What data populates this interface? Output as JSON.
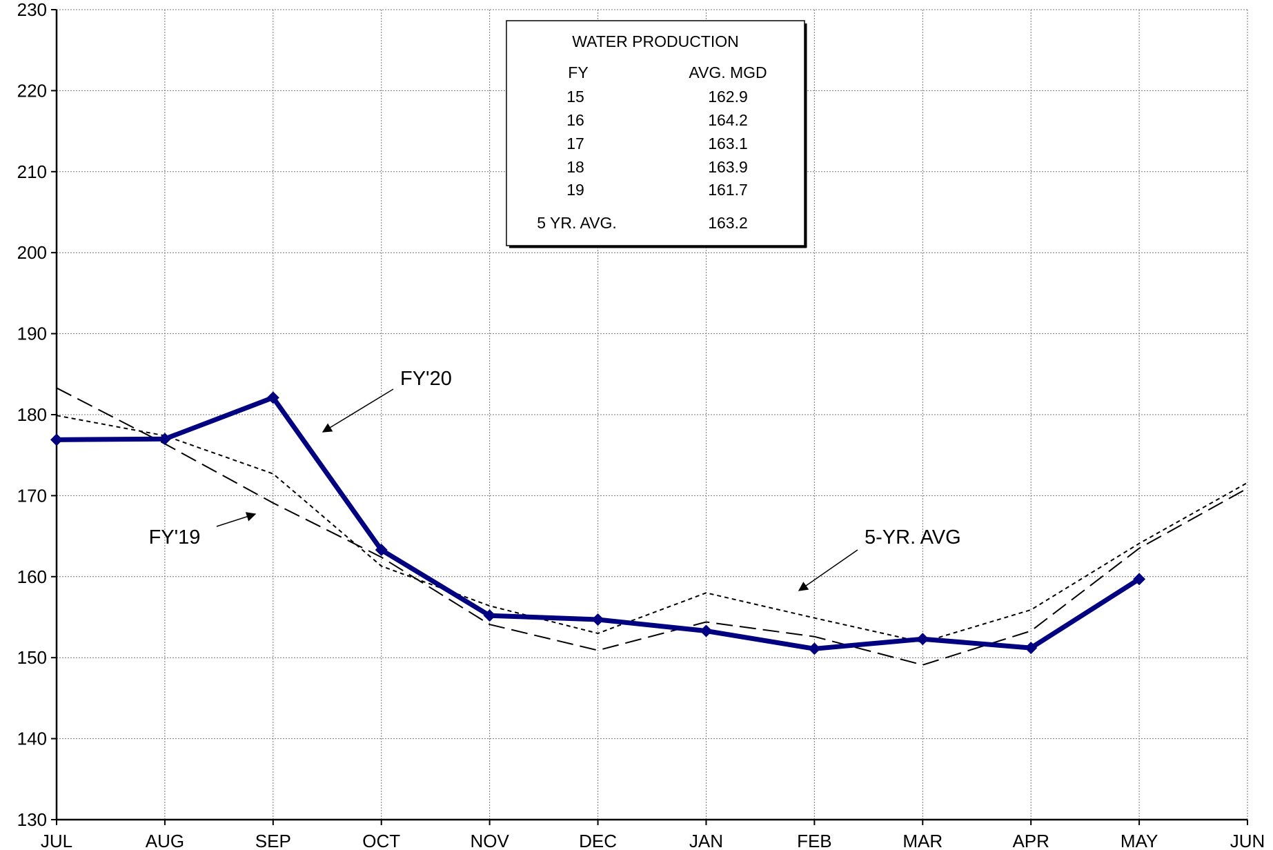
{
  "chart_data": {
    "type": "line",
    "categories": [
      "JUL",
      "AUG",
      "SEP",
      "OCT",
      "NOV",
      "DEC",
      "JAN",
      "FEB",
      "MAR",
      "APR",
      "MAY",
      "JUN"
    ],
    "ylim": [
      130,
      230
    ],
    "yticks": [
      130,
      140,
      150,
      160,
      170,
      180,
      190,
      200,
      210,
      220,
      230
    ],
    "grid": true,
    "series": [
      {
        "name": "FY'20",
        "values": [
          176.9,
          177.0,
          182.1,
          163.3,
          155.2,
          154.7,
          153.3,
          151.1,
          152.3,
          151.2,
          159.7,
          null
        ],
        "color": "#000080",
        "style": "solid-marker"
      },
      {
        "name": "FY'19",
        "values": [
          183.3,
          176.4,
          169.1,
          162.4,
          154.1,
          150.9,
          154.4,
          152.6,
          149.1,
          153.3,
          163.5,
          170.9
        ],
        "color": "#000000",
        "style": "long-dash"
      },
      {
        "name": "5-YR. AVG",
        "values": [
          179.9,
          177.4,
          172.7,
          161.3,
          156.4,
          153.0,
          158.0,
          154.9,
          151.9,
          155.9,
          164.1,
          171.6
        ],
        "color": "#000000",
        "style": "short-dash"
      }
    ],
    "annotations": [
      {
        "text": "FY'20",
        "series": 0
      },
      {
        "text": "FY'19",
        "series": 1
      },
      {
        "text": "5-YR. AVG",
        "series": 2
      }
    ],
    "table": {
      "title": "WATER PRODUCTION",
      "col_headers": [
        "FY",
        "AVG. MGD"
      ],
      "rows": [
        [
          "15",
          "162.9"
        ],
        [
          "16",
          "164.2"
        ],
        [
          "17",
          "163.1"
        ],
        [
          "18",
          "163.9"
        ],
        [
          "19",
          "161.7"
        ]
      ],
      "summary": [
        "5 YR. AVG.",
        "163.2"
      ]
    }
  }
}
